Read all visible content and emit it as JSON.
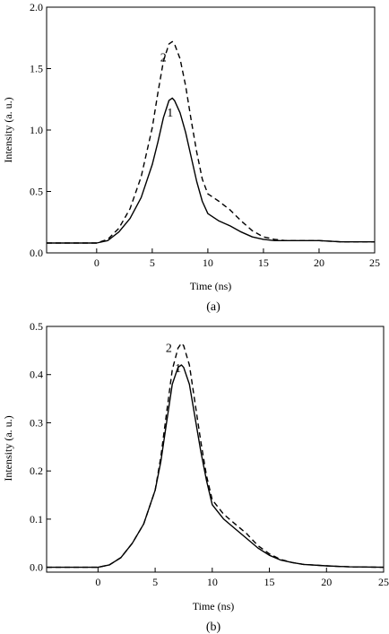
{
  "chart_data": [
    {
      "type": "line",
      "panel_label": "(a)",
      "xlabel": "Time (ns)",
      "ylabel": "Intensity (a. u.)",
      "xlim": [
        -4.5,
        25
      ],
      "ylim": [
        0,
        2.0
      ],
      "x_ticks": [
        0,
        5,
        10,
        15,
        20,
        25
      ],
      "x_tick_labels": [
        "0",
        "5",
        "10",
        "15",
        "20",
        "25"
      ],
      "y_ticks": [
        0.0,
        0.5,
        1.0,
        1.5,
        2.0
      ],
      "y_tick_labels": [
        "0.0",
        "0.5",
        "1.0",
        "1.5",
        "2.0"
      ],
      "series": [
        {
          "name": "1",
          "style": "solid",
          "label_at": [
            6.6,
            1.11
          ],
          "x": [
            -4.5,
            0,
            1,
            2,
            3,
            4,
            5,
            5.5,
            6,
            6.5,
            6.8,
            7,
            7.5,
            8,
            8.5,
            9,
            9.5,
            10,
            11,
            12,
            13,
            14,
            15,
            16,
            17,
            18,
            20,
            22,
            25
          ],
          "y": [
            0.08,
            0.08,
            0.1,
            0.17,
            0.28,
            0.45,
            0.72,
            0.9,
            1.1,
            1.24,
            1.26,
            1.24,
            1.14,
            0.98,
            0.78,
            0.58,
            0.42,
            0.32,
            0.26,
            0.22,
            0.17,
            0.13,
            0.11,
            0.1,
            0.1,
            0.1,
            0.1,
            0.09,
            0.09
          ]
        },
        {
          "name": "2",
          "style": "dashed",
          "label_at": [
            6.0,
            1.56
          ],
          "x": [
            -4.5,
            0,
            1,
            2,
            3,
            4,
            5,
            5.5,
            6,
            6.5,
            6.8,
            7,
            7.5,
            8,
            8.5,
            9,
            9.5,
            10,
            11,
            12,
            13,
            14,
            15,
            16,
            17,
            18,
            20,
            22,
            25
          ],
          "y": [
            0.08,
            0.08,
            0.11,
            0.2,
            0.36,
            0.62,
            1.02,
            1.3,
            1.56,
            1.7,
            1.72,
            1.7,
            1.58,
            1.36,
            1.08,
            0.82,
            0.6,
            0.48,
            0.42,
            0.35,
            0.26,
            0.18,
            0.13,
            0.11,
            0.1,
            0.1,
            0.1,
            0.09,
            0.09
          ]
        }
      ]
    },
    {
      "type": "line",
      "panel_label": "(b)",
      "xlabel": "Time (ns)",
      "ylabel": "Intensity (a. u.)",
      "xlim": [
        -4.5,
        25
      ],
      "ylim": [
        -0.01,
        0.5
      ],
      "x_ticks": [
        0,
        5,
        10,
        15,
        20,
        25
      ],
      "x_tick_labels": [
        "0",
        "5",
        "10",
        "15",
        "20",
        "25"
      ],
      "y_ticks": [
        0.0,
        0.1,
        0.2,
        0.3,
        0.4,
        0.5
      ],
      "y_tick_labels": [
        "0.0",
        "0.1",
        "0.2",
        "0.3",
        "0.4",
        "0.5"
      ],
      "series": [
        {
          "name": "1",
          "style": "solid",
          "label_at": [
            7.0,
            0.405
          ],
          "x": [
            -4.5,
            -2,
            0,
            1,
            2,
            3,
            4,
            5,
            5.5,
            6,
            6.5,
            7,
            7.3,
            7.5,
            8,
            8.5,
            9,
            9.5,
            10,
            11,
            12,
            13,
            14,
            15,
            16,
            17,
            18,
            20,
            22,
            25
          ],
          "y": [
            0.0,
            0.0,
            0.0,
            0.005,
            0.02,
            0.05,
            0.09,
            0.16,
            0.22,
            0.3,
            0.38,
            0.415,
            0.42,
            0.415,
            0.38,
            0.31,
            0.24,
            0.18,
            0.13,
            0.1,
            0.08,
            0.06,
            0.04,
            0.025,
            0.015,
            0.01,
            0.006,
            0.003,
            0.001,
            0.0
          ]
        },
        {
          "name": "2",
          "style": "dashed",
          "label_at": [
            6.2,
            0.447
          ],
          "x": [
            -4.5,
            -2,
            0,
            1,
            2,
            3,
            4,
            5,
            5.5,
            6,
            6.5,
            7,
            7.3,
            7.5,
            8,
            8.5,
            9,
            9.5,
            10,
            11,
            12,
            13,
            14,
            15,
            16,
            17,
            18,
            20,
            22,
            25
          ],
          "y": [
            0.0,
            0.0,
            0.0,
            0.005,
            0.02,
            0.05,
            0.09,
            0.16,
            0.23,
            0.32,
            0.41,
            0.455,
            0.465,
            0.46,
            0.42,
            0.34,
            0.26,
            0.19,
            0.14,
            0.11,
            0.09,
            0.07,
            0.045,
            0.028,
            0.016,
            0.01,
            0.006,
            0.003,
            0.001,
            0.0
          ]
        }
      ]
    }
  ]
}
